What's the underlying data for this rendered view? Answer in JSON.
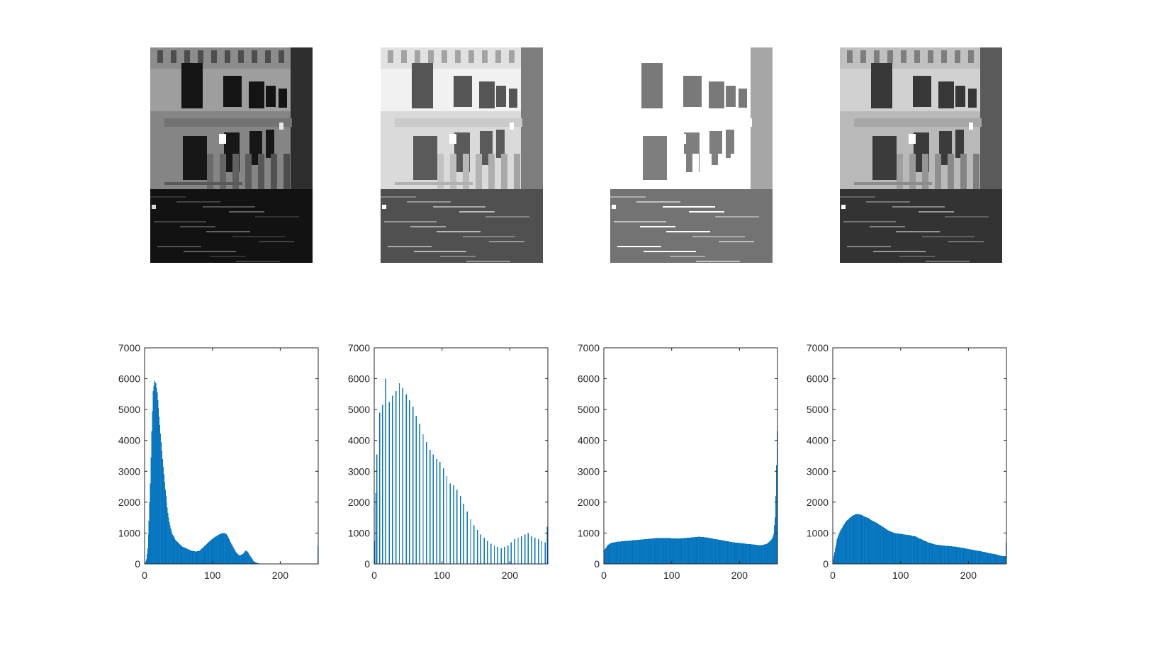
{
  "figure": {
    "background": "#ffffff",
    "image_panels": [
      {
        "variant": "original-dark",
        "gamma": 1.0,
        "offset": 0.0,
        "gain": 1.0,
        "bright_clip": false
      },
      {
        "variant": "histogram-stretched",
        "gamma": 0.6,
        "offset": 0.08,
        "gain": 1.15,
        "bright_clip": false
      },
      {
        "variant": "histogram-equalized",
        "gamma": 0.5,
        "offset": 0.12,
        "gain": 1.25,
        "bright_clip": true
      },
      {
        "variant": "adaptive-equalized",
        "gamma": 0.75,
        "offset": 0.05,
        "gain": 1.1,
        "bright_clip": false
      }
    ]
  },
  "chart_data": [
    {
      "type": "bar",
      "bar_color": "#0072BD",
      "xlim": [
        0,
        256
      ],
      "ylim": [
        0,
        7000
      ],
      "xticks": [
        "0",
        "100",
        "200"
      ],
      "yticks": [
        "0",
        "1000",
        "2000",
        "3000",
        "4000",
        "5000",
        "6000",
        "7000"
      ],
      "pattern": "dense",
      "x": [
        0,
        2,
        4,
        6,
        8,
        10,
        12,
        14,
        16,
        18,
        20,
        22,
        24,
        26,
        28,
        30,
        32,
        34,
        36,
        38,
        40,
        45,
        50,
        55,
        60,
        65,
        70,
        75,
        80,
        85,
        90,
        95,
        100,
        105,
        110,
        115,
        118,
        120,
        122,
        125,
        130,
        135,
        140,
        145,
        148,
        150,
        152,
        155,
        160,
        165,
        170,
        175,
        180,
        200,
        220,
        240,
        254,
        255
      ],
      "y": [
        0,
        150,
        500,
        1400,
        2600,
        4300,
        5600,
        5950,
        5850,
        5550,
        5050,
        4500,
        3950,
        3400,
        2900,
        2400,
        2000,
        1650,
        1350,
        1150,
        980,
        780,
        660,
        560,
        520,
        460,
        420,
        400,
        420,
        520,
        620,
        730,
        820,
        900,
        960,
        1000,
        1000,
        960,
        900,
        760,
        550,
        350,
        270,
        330,
        420,
        430,
        380,
        260,
        90,
        30,
        8,
        3,
        0,
        0,
        0,
        0,
        0,
        580
      ]
    },
    {
      "type": "bar",
      "bar_color": "#0072BD",
      "xlim": [
        0,
        256
      ],
      "ylim": [
        0,
        7000
      ],
      "xticks": [
        "0",
        "100",
        "200"
      ],
      "yticks": [
        "0",
        "1000",
        "2000",
        "3000",
        "4000",
        "5000",
        "6000",
        "7000"
      ],
      "pattern": "sparse",
      "x": [
        0,
        2,
        4,
        8,
        12,
        17,
        22,
        27,
        32,
        37,
        42,
        47,
        52,
        57,
        62,
        67,
        72,
        77,
        82,
        87,
        92,
        97,
        102,
        107,
        112,
        117,
        122,
        127,
        132,
        137,
        142,
        147,
        152,
        157,
        162,
        167,
        172,
        177,
        182,
        187,
        192,
        197,
        202,
        207,
        212,
        217,
        222,
        227,
        232,
        237,
        242,
        247,
        252,
        255
      ],
      "y": [
        750,
        2300,
        3550,
        4900,
        5150,
        6000,
        5250,
        5450,
        5600,
        5850,
        5700,
        5500,
        5300,
        5100,
        4800,
        4550,
        4200,
        3950,
        3700,
        3550,
        3400,
        3300,
        3100,
        2850,
        2600,
        2550,
        2400,
        2200,
        1950,
        1700,
        1450,
        1250,
        1100,
        950,
        850,
        750,
        650,
        600,
        550,
        500,
        550,
        600,
        700,
        800,
        850,
        900,
        950,
        1000,
        900,
        850,
        800,
        750,
        700,
        1200
      ]
    },
    {
      "type": "bar",
      "bar_color": "#0072BD",
      "xlim": [
        0,
        256
      ],
      "ylim": [
        0,
        7000
      ],
      "xticks": [
        "0",
        "100",
        "200"
      ],
      "yticks": [
        "0",
        "1000",
        "2000",
        "3000",
        "4000",
        "5000",
        "6000",
        "7000"
      ],
      "pattern": "dense",
      "x": [
        0,
        5,
        10,
        20,
        30,
        40,
        50,
        60,
        70,
        80,
        90,
        100,
        110,
        120,
        130,
        140,
        150,
        160,
        170,
        180,
        190,
        200,
        210,
        220,
        230,
        240,
        245,
        248,
        250,
        252,
        253,
        254,
        255
      ],
      "y": [
        450,
        600,
        680,
        720,
        740,
        760,
        780,
        800,
        820,
        840,
        840,
        830,
        820,
        840,
        860,
        880,
        860,
        820,
        780,
        740,
        700,
        680,
        650,
        630,
        600,
        650,
        750,
        850,
        1000,
        1500,
        2200,
        3200,
        4300
      ]
    },
    {
      "type": "bar",
      "bar_color": "#0072BD",
      "xlim": [
        0,
        256
      ],
      "ylim": [
        0,
        7000
      ],
      "xticks": [
        "0",
        "100",
        "200"
      ],
      "yticks": [
        "0",
        "1000",
        "2000",
        "3000",
        "4000",
        "5000",
        "6000",
        "7000"
      ],
      "pattern": "dense",
      "x": [
        0,
        3,
        6,
        10,
        15,
        20,
        25,
        30,
        35,
        40,
        50,
        60,
        70,
        80,
        90,
        100,
        110,
        120,
        130,
        140,
        150,
        160,
        170,
        180,
        190,
        200,
        210,
        220,
        230,
        240,
        250,
        254,
        255
      ],
      "y": [
        150,
        500,
        800,
        1050,
        1250,
        1400,
        1500,
        1580,
        1620,
        1600,
        1500,
        1380,
        1250,
        1100,
        1000,
        970,
        940,
        900,
        800,
        700,
        630,
        600,
        580,
        560,
        520,
        480,
        440,
        400,
        350,
        310,
        250,
        250,
        700
      ]
    }
  ]
}
